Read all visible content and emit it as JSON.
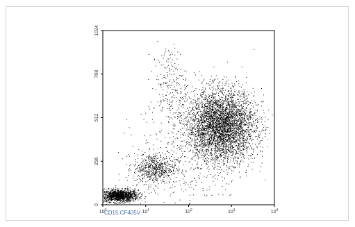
{
  "chart_data": {
    "type": "scatter",
    "xscale": "log",
    "xlim": [
      1,
      10000
    ],
    "ylim": [
      0,
      1024
    ],
    "xlabel": "CD15 CF405V",
    "ylabel": "",
    "x_ticks": [
      {
        "value": 1,
        "base": "10",
        "exp": "0"
      },
      {
        "value": 10,
        "base": "10",
        "exp": "1"
      },
      {
        "value": 100,
        "base": "10",
        "exp": "2"
      },
      {
        "value": 1000,
        "base": "10",
        "exp": "3"
      },
      {
        "value": 10000,
        "base": "10",
        "exp": "4"
      }
    ],
    "y_ticks": [
      {
        "value": 0,
        "label": "0"
      },
      {
        "value": 256,
        "label": "256"
      },
      {
        "value": 512,
        "label": "512"
      },
      {
        "value": 768,
        "label": "768"
      },
      {
        "value": 1024,
        "label": "1024"
      }
    ],
    "grid": false,
    "point_color": "#000000",
    "series": [
      {
        "populations": [
          {
            "n": 1300,
            "cx_log": 0.38,
            "cy": 55,
            "sx_log": 0.22,
            "sy": 18
          },
          {
            "n": 600,
            "cx_log": 1.2,
            "cy": 215,
            "sx_log": 0.25,
            "sy": 45
          },
          {
            "n": 220,
            "cx_log": 1.55,
            "cy": 700,
            "sx_log": 0.2,
            "sy": 120
          },
          {
            "n": 4000,
            "cx_log": 2.75,
            "cy": 465,
            "sx_log": 0.4,
            "sy": 105
          },
          {
            "n": 350,
            "cx_log": 2.0,
            "cy": 300,
            "sx_log": 0.6,
            "sy": 180
          }
        ]
      }
    ]
  }
}
